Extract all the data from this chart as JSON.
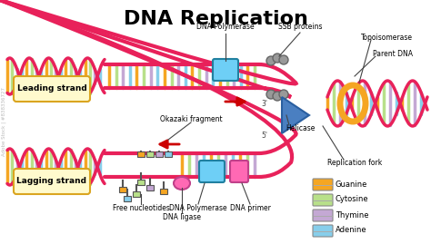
{
  "title": "DNA Replication",
  "title_fontsize": 16,
  "title_fontweight": "bold",
  "background_color": "#ffffff",
  "labels": {
    "leading_strand": "Leading strand",
    "lagging_strand": "Lagging strand",
    "dna_polymerase_top": "DNA Polymerase",
    "ssb_proteins": "SSB proteins",
    "topoisomerase": "Topoisomerase",
    "parent_dna": "Parent DNA",
    "helicase": "Helicase",
    "okazaki": "Okazaki fragment",
    "free_nucleotides": "Free nucleotides",
    "dna_polymerase_bottom": "DNA Polymerase",
    "dna_ligase": "DNA ligase",
    "dna_primer": "DNA primer",
    "replication_fork": "Replication fork",
    "three_prime": "3'",
    "five_prime": "5'"
  },
  "legend": {
    "guanine": {
      "color": "#F5A623",
      "label": "Guanine"
    },
    "cytosine": {
      "color": "#B8E08A",
      "label": "Cytosine"
    },
    "thymine": {
      "color": "#C4A8D4",
      "label": "Thymine"
    },
    "adenine": {
      "color": "#87CEEB",
      "label": "Adenine"
    }
  },
  "colors": {
    "backbone": "#E8215A",
    "backbone_dark": "#C41040",
    "nucleotide_orange": "#F5A623",
    "nucleotide_green": "#B8E08A",
    "nucleotide_purple": "#C4A8D4",
    "nucleotide_blue": "#87CEEB",
    "polymerase": "#6ECFF6",
    "helicase_arrow": "#4A90D9",
    "label_box": "#FFFACD",
    "label_box_border": "#DAA520",
    "primer": "#FF69B4",
    "gray": "#999999",
    "topoisomerase_ring": "#F5A623",
    "annotation_line": "#555555",
    "arrow_red": "#CC0000"
  }
}
